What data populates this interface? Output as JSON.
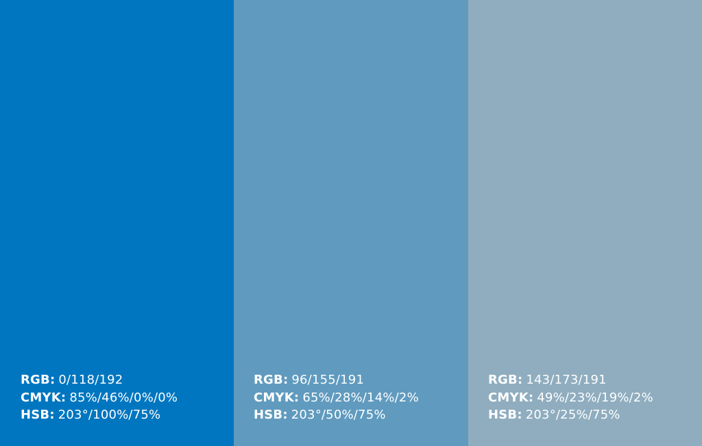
{
  "swatches": [
    {
      "color": "#0076C0",
      "rgb_label": "RGB:",
      "rgb_value": "0/118/192",
      "cmyk_label": "CMYK:",
      "cmyk_value": "85%/46%/0%/0%",
      "hsb_label": "HSB:",
      "hsb_value": "203°/100%/75%"
    },
    {
      "color": "#609BBF",
      "rgb_label": "RGB:",
      "rgb_value": "96/155/191",
      "cmyk_label": "CMYK:",
      "cmyk_value": "65%/28%/14%/2%",
      "hsb_label": "HSB:",
      "hsb_value": "203°/50%/75%"
    },
    {
      "color": "#8FADBF",
      "rgb_label": "RGB:",
      "rgb_value": "143/173/191",
      "cmyk_label": "CMYK:",
      "cmyk_value": "49%/23%/19%/2%",
      "hsb_label": "HSB:",
      "hsb_value": "203°/25%/75%"
    }
  ]
}
